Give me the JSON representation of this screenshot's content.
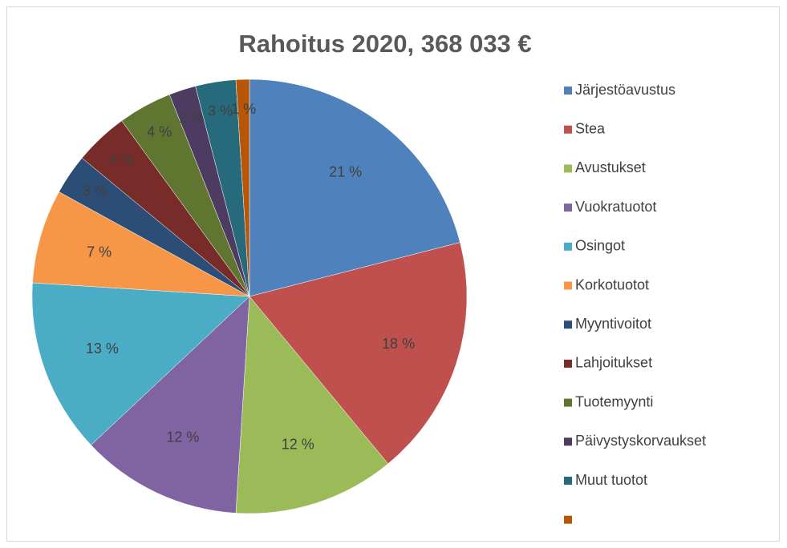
{
  "chart_data": {
    "type": "pie",
    "title": "Rahoitus 2020, 368 033 €",
    "categories": [
      "Järjestöavustus",
      "Stea",
      "Avustukset",
      "Vuokratuotot",
      "Osingot",
      "Korkotuotot",
      "Myyntivoitot",
      "Lahjoitukset",
      "Tuotemyynti",
      "Päivystyskorvaukset",
      "Muut tuotot",
      null
    ],
    "values": [
      21,
      18,
      12,
      12,
      13,
      7,
      3,
      4,
      4,
      2,
      3,
      1
    ],
    "value_labels": [
      "21 %",
      "18 %",
      "12 %",
      "12 %",
      "13 %",
      "7 %",
      "3 %",
      "4 %",
      "4 %",
      "2 %",
      "3 %",
      "1 %"
    ],
    "colors": [
      "#4f81bd",
      "#c0504d",
      "#9bbb59",
      "#8064a2",
      "#4bacc6",
      "#f79646",
      "#2c4d75",
      "#772c2a",
      "#5f7530",
      "#4d3b62",
      "#276a7c",
      "#b65708"
    ],
    "legend": "right"
  }
}
